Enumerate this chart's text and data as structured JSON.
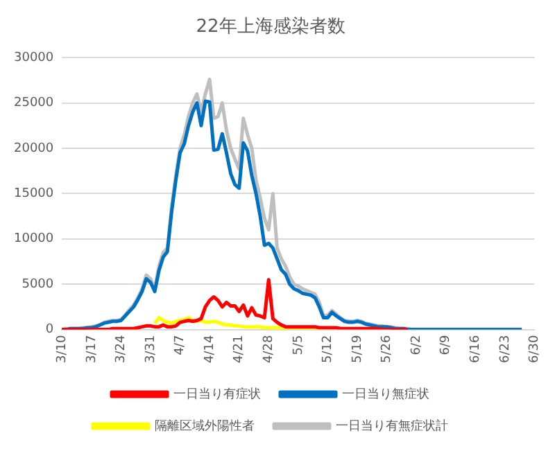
{
  "chart_data": {
    "type": "line",
    "title": "22年上海感染者数",
    "categories": [
      "3/10",
      null,
      null,
      null,
      null,
      null,
      null,
      "3/17",
      null,
      null,
      null,
      null,
      null,
      null,
      "3/24",
      null,
      null,
      null,
      null,
      null,
      null,
      "3/31",
      null,
      null,
      null,
      null,
      null,
      null,
      "4/7",
      null,
      null,
      null,
      null,
      null,
      null,
      "4/14",
      null,
      null,
      null,
      null,
      null,
      null,
      "4/21",
      null,
      null,
      null,
      null,
      null,
      null,
      "4/28",
      null,
      null,
      null,
      null,
      null,
      null,
      "5/5",
      null,
      null,
      null,
      null,
      null,
      null,
      "5/12",
      null,
      null,
      null,
      null,
      null,
      null,
      "5/19",
      null,
      null,
      null,
      null,
      null,
      null,
      "5/26",
      null,
      null,
      null,
      null,
      null,
      null,
      "6/2",
      null,
      null,
      null,
      null,
      null,
      null,
      "6/9",
      null,
      null,
      null,
      null,
      null,
      null,
      "6/16",
      null,
      null,
      null,
      null,
      null,
      null,
      "6/23",
      null,
      null,
      null,
      null,
      null,
      null,
      "6/30"
    ],
    "series": [
      {
        "name": "一日当り有症状",
        "color": "#ff0000",
        "values": [
          0,
          0,
          0,
          0,
          0,
          0,
          0,
          0,
          0,
          0,
          0,
          0,
          100,
          100,
          100,
          100,
          100,
          100,
          200,
          300,
          400,
          400,
          300,
          300,
          500,
          300,
          300,
          400,
          800,
          900,
          1000,
          900,
          1000,
          1200,
          2500,
          3200,
          3600,
          3200,
          2500,
          3000,
          2600,
          2600,
          2000,
          2700,
          1500,
          2400,
          1600,
          1500,
          1300,
          5500,
          1200,
          800,
          500,
          300,
          300,
          300,
          300,
          300,
          300,
          300,
          300,
          200,
          200,
          200,
          200,
          200,
          100,
          100,
          100,
          100,
          100,
          100,
          100,
          100,
          100,
          100,
          0,
          0,
          0,
          0,
          0,
          0,
          0,
          null,
          null,
          null,
          null,
          null,
          null,
          null,
          null,
          null,
          null,
          null,
          null,
          null,
          null,
          null,
          null,
          null,
          null,
          null,
          null,
          null,
          null,
          null,
          null,
          null,
          null,
          null,
          null,
          null,
          null
        ]
      },
      {
        "name": "一日当り無症状",
        "color": "#0070c0",
        "values": [
          0,
          0,
          100,
          100,
          100,
          100,
          200,
          200,
          300,
          500,
          700,
          800,
          900,
          900,
          1000,
          1500,
          2000,
          2500,
          3300,
          4200,
          5600,
          5200,
          4200,
          6500,
          8000,
          8600,
          13000,
          16500,
          19500,
          20500,
          22500,
          24000,
          25000,
          22500,
          25200,
          25100,
          19800,
          19900,
          21600,
          19500,
          17200,
          16000,
          15600,
          20600,
          19700,
          17000,
          15000,
          12500,
          9300,
          9500,
          9000,
          7800,
          6600,
          6100,
          5000,
          4500,
          4300,
          4000,
          3900,
          3800,
          3500,
          2500,
          1300,
          1300,
          1900,
          1500,
          1200,
          900,
          800,
          800,
          900,
          800,
          600,
          500,
          400,
          300,
          300,
          300,
          200,
          100,
          100,
          100,
          0,
          0,
          0,
          0,
          0,
          0,
          0,
          0,
          0,
          0,
          0,
          0,
          0,
          0,
          0,
          0,
          0,
          0,
          0,
          0,
          0,
          0,
          0,
          0,
          0,
          0,
          0,
          0,
          null,
          null,
          null
        ]
      },
      {
        "name": "隔離区域外陽性者",
        "color": "#ffff00",
        "values": [
          null,
          null,
          null,
          null,
          null,
          null,
          null,
          null,
          null,
          null,
          null,
          null,
          null,
          null,
          null,
          null,
          null,
          null,
          null,
          null,
          null,
          null,
          700,
          1300,
          1000,
          800,
          700,
          900,
          1000,
          1100,
          1300,
          1000,
          900,
          1000,
          800,
          800,
          900,
          800,
          600,
          500,
          500,
          400,
          400,
          300,
          300,
          300,
          300,
          300,
          200,
          200,
          200,
          200,
          100,
          100,
          100,
          100,
          100,
          100,
          100,
          100,
          0,
          0,
          0,
          0,
          null,
          null,
          null,
          null,
          null,
          null,
          null,
          null,
          null,
          null,
          null,
          null,
          null,
          null,
          null,
          null,
          null,
          null,
          null,
          null,
          null,
          null,
          null,
          null,
          null,
          null,
          null,
          null,
          null,
          null,
          null,
          null,
          null,
          null,
          null,
          null,
          null,
          null,
          null,
          null,
          null,
          null,
          null,
          null,
          null,
          null,
          null,
          null,
          null
        ]
      },
      {
        "name": "一日当り有無症状計",
        "color": "#bfbfbf",
        "values": [
          0,
          100,
          100,
          100,
          100,
          200,
          200,
          300,
          400,
          500,
          800,
          900,
          1000,
          1000,
          1100,
          1600,
          2200,
          2700,
          3500,
          4500,
          6000,
          5600,
          4500,
          7000,
          8500,
          9000,
          13500,
          17000,
          20000,
          21500,
          23500,
          25000,
          26000,
          24000,
          26000,
          27600,
          23300,
          23500,
          25000,
          22000,
          20000,
          18800,
          17700,
          23300,
          21500,
          20000,
          16500,
          14500,
          12300,
          11000,
          15000,
          9000,
          7800,
          7000,
          5800,
          5000,
          4800,
          4500,
          4300,
          4100,
          3900,
          3000,
          1500,
          1600,
          2100,
          1700,
          1300,
          1000,
          900,
          900,
          1000,
          900,
          700,
          600,
          500,
          400,
          400,
          300,
          300,
          200,
          100,
          100,
          100,
          0,
          0,
          0,
          0,
          0,
          0,
          0,
          0,
          0,
          0,
          0,
          0,
          0,
          0,
          0,
          0,
          0,
          0,
          0,
          0,
          0,
          0,
          0,
          0,
          0,
          0,
          0,
          null,
          null,
          null
        ]
      }
    ],
    "ylim": [
      0,
      30000
    ],
    "yticks": [
      0,
      5000,
      10000,
      15000,
      20000,
      25000,
      30000
    ],
    "grid": "y",
    "legend": "bottom",
    "marker": "none",
    "line_style": "solid"
  }
}
